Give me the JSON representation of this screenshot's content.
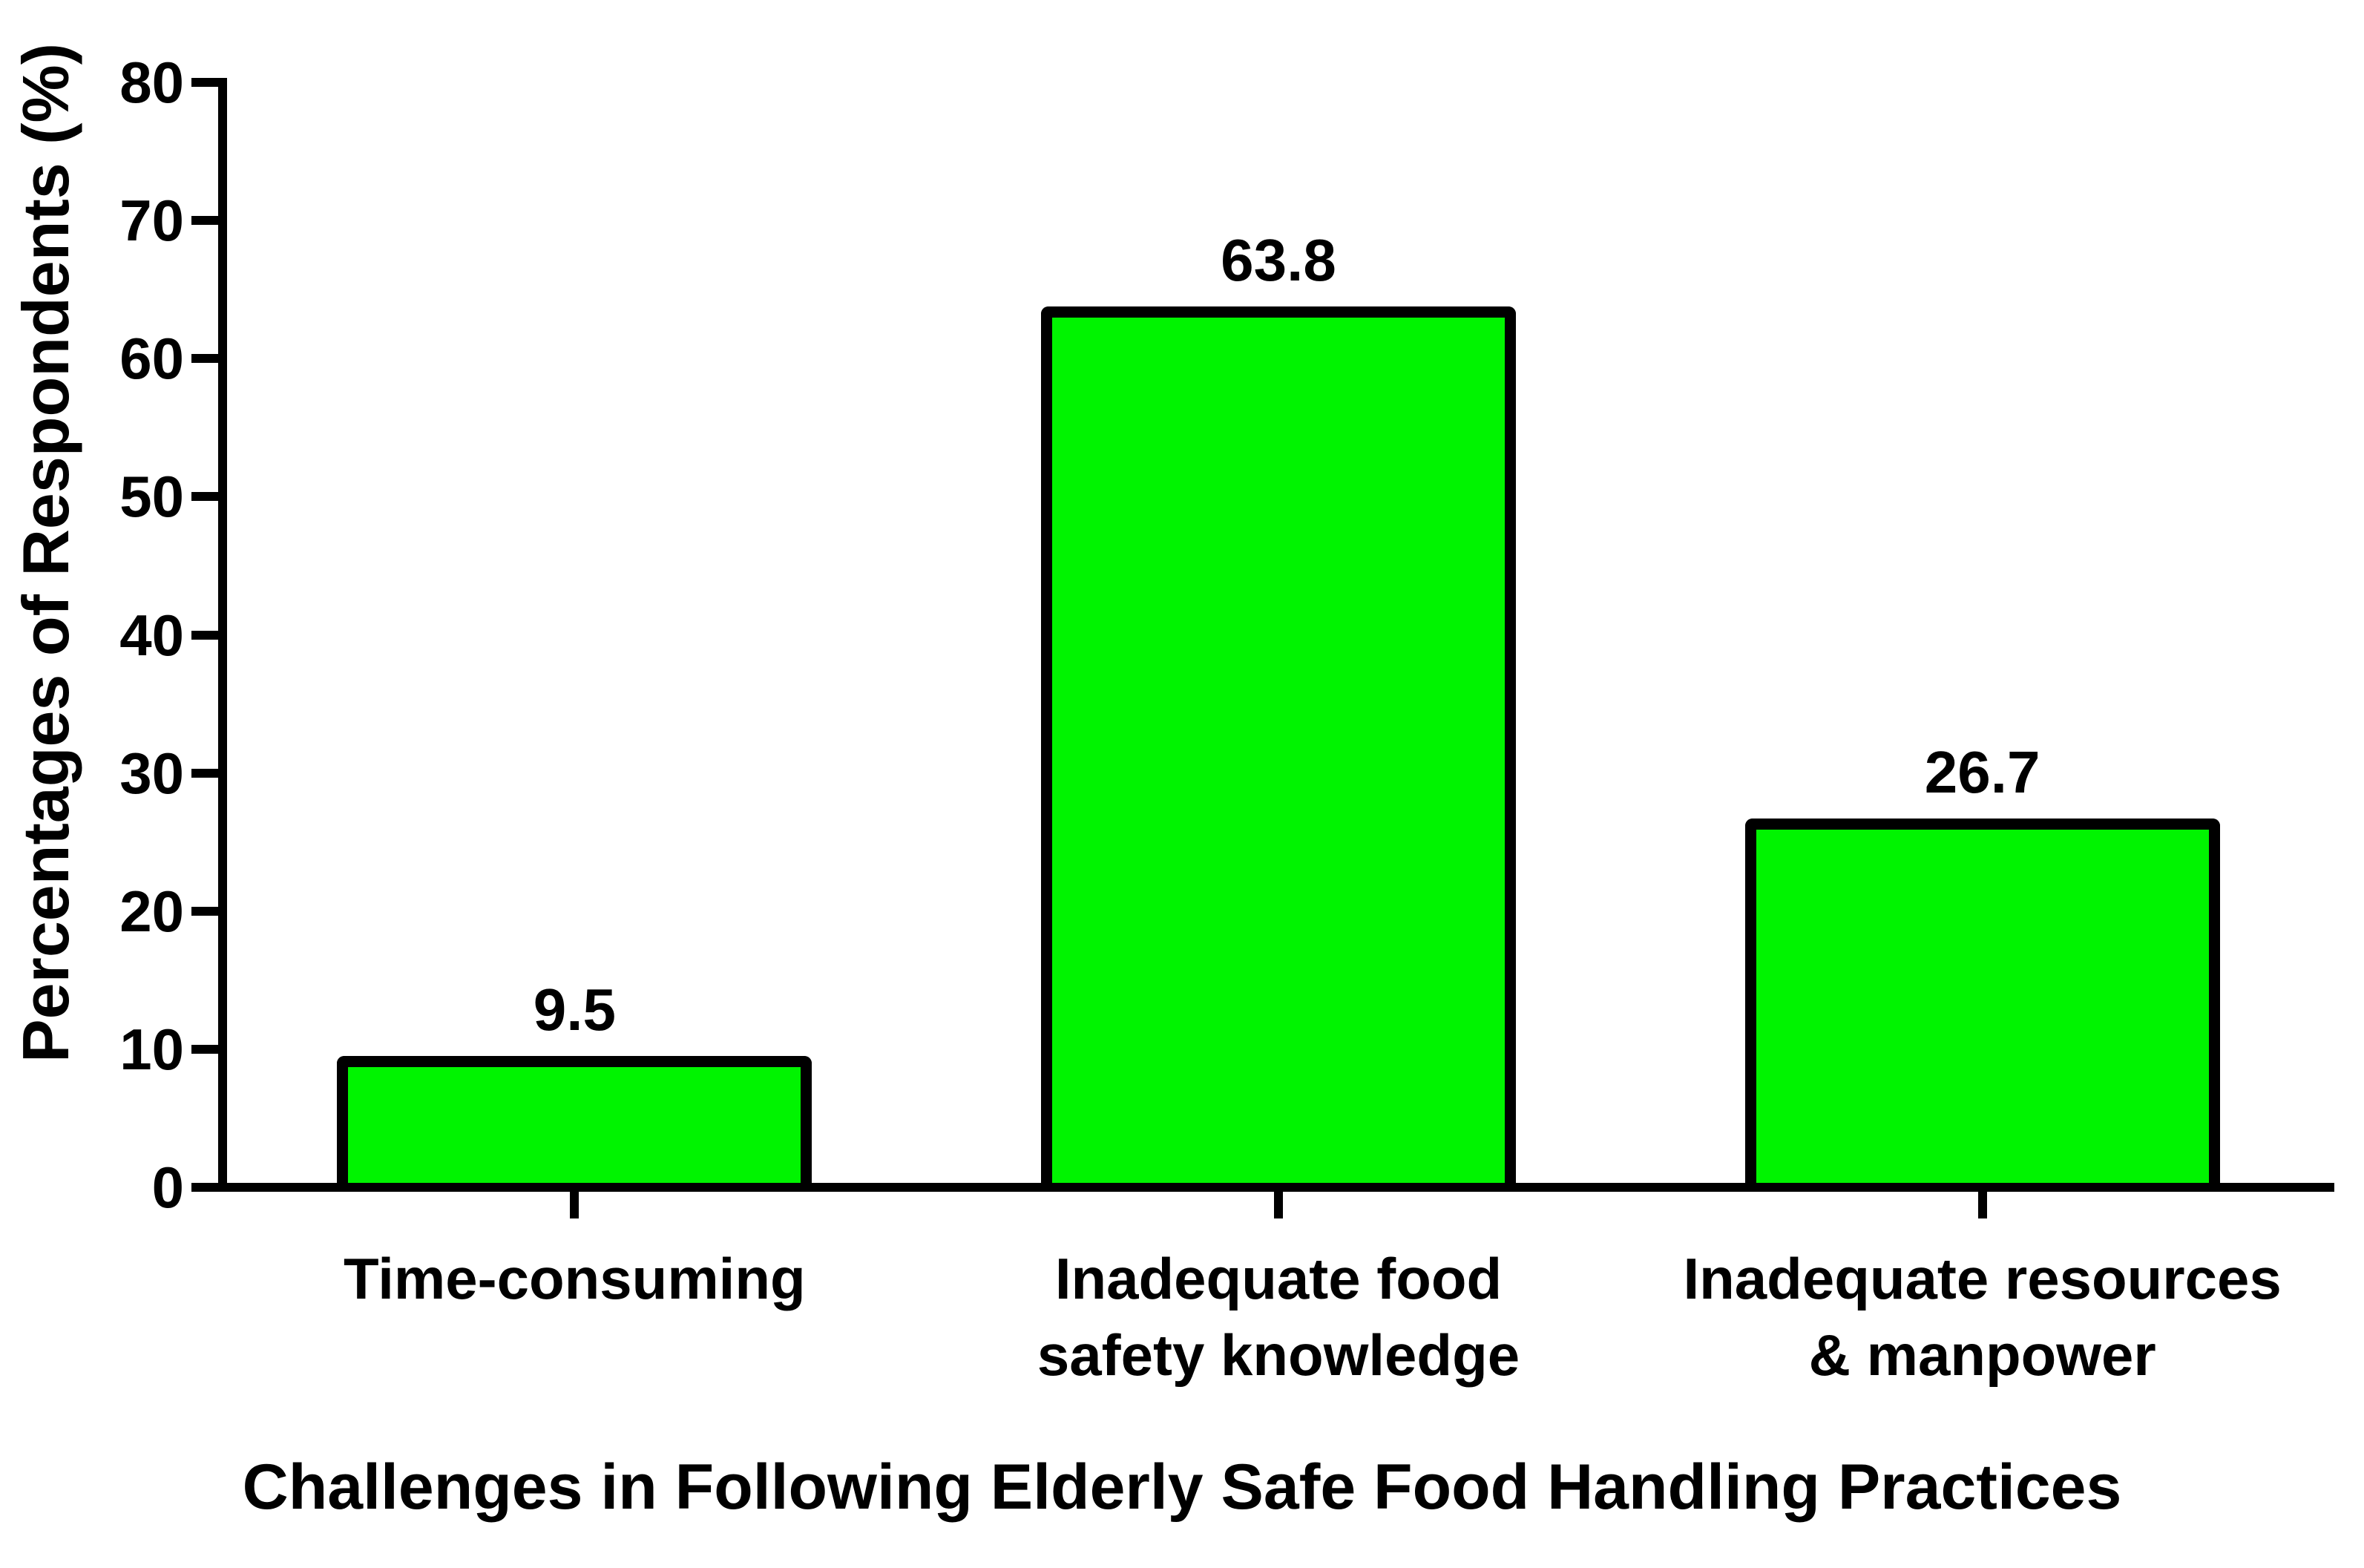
{
  "chart_data": {
    "type": "bar",
    "title": "",
    "xlabel": "Challenges in Following Elderly Safe Food Handling Practices",
    "ylabel": "Percentages of Respondents (%)",
    "categories": [
      [
        "Time-consuming"
      ],
      [
        "Inadequate food",
        "safety knowledge"
      ],
      [
        "Inadequate resources",
        "& manpower"
      ]
    ],
    "values": [
      9.5,
      63.8,
      26.7
    ],
    "value_labels": [
      "9.5",
      "63.8",
      "26.7"
    ],
    "ylim": [
      0,
      80
    ],
    "yticks": [
      0,
      10,
      20,
      30,
      40,
      50,
      60,
      70,
      80
    ],
    "grid": false,
    "legend_position": "none",
    "colors": {
      "bar_fill": "#00F400",
      "bar_border": "#000000",
      "axis": "#000000",
      "text": "#000000",
      "background": "#FFFFFF"
    }
  }
}
